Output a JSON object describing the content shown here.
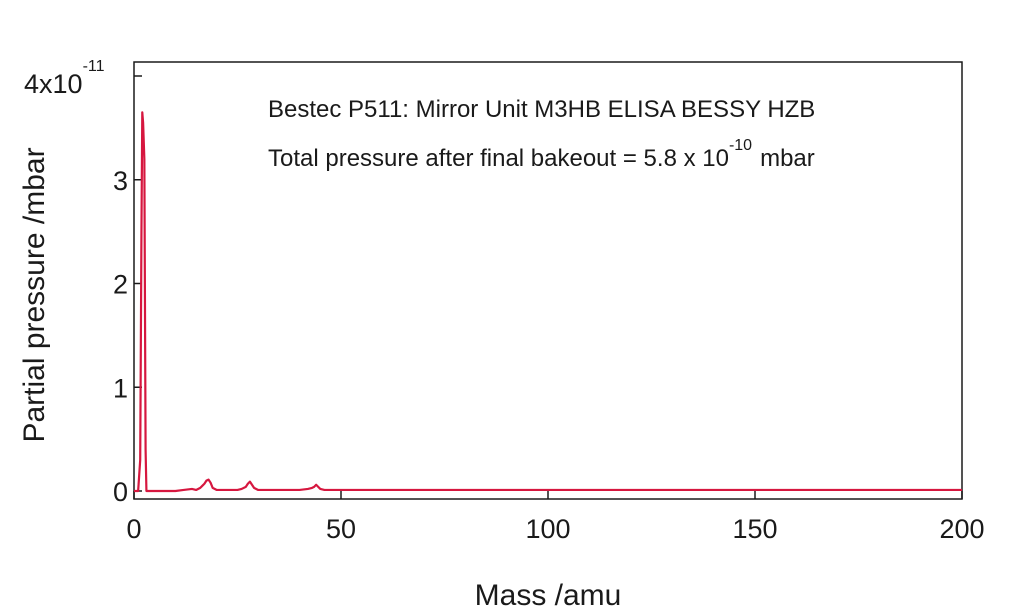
{
  "chart_data": {
    "type": "line",
    "annotations": {
      "line1": "Bestec P511: Mirror Unit M3HB ELISA BESSY HZB",
      "line2_prefix": "Total pressure after final bakeout = 5.8 x 10",
      "line2_exponent": "-10",
      "line2_suffix": "mbar"
    },
    "xlabel": "Mass /amu",
    "ylabel": "Partial pressure /mbar",
    "xlim": [
      0,
      200
    ],
    "ylim": [
      0,
      4
    ],
    "y_multiplier": {
      "base": "4x10",
      "exponent": "-11"
    },
    "x_ticks": [
      "0",
      "50",
      "100",
      "150",
      "200"
    ],
    "y_ticks": [
      "0",
      "1",
      "2",
      "3"
    ],
    "grid": false,
    "line_color": "#d6173f",
    "series": [
      {
        "x": [
          0,
          1,
          1.5,
          1.8,
          2,
          2.2,
          2.5,
          2.8,
          3,
          3.5,
          10,
          12,
          14,
          15,
          16,
          16.5,
          17,
          17.5,
          18,
          18.5,
          19,
          20,
          25,
          26,
          27,
          27.5,
          28,
          28.5,
          29,
          30,
          40,
          42,
          43,
          43.5,
          44,
          44.5,
          45,
          46,
          60,
          100,
          150,
          200
        ],
        "y": [
          0,
          0,
          0.3,
          2.5,
          3.65,
          3.55,
          3.2,
          0.4,
          0,
          0,
          0,
          0.01,
          0.02,
          0.01,
          0.03,
          0.05,
          0.07,
          0.1,
          0.11,
          0.08,
          0.03,
          0.01,
          0.01,
          0.02,
          0.04,
          0.07,
          0.09,
          0.06,
          0.03,
          0.01,
          0.01,
          0.02,
          0.03,
          0.04,
          0.06,
          0.04,
          0.02,
          0.01,
          0.01,
          0.01,
          0.01,
          0.01
        ]
      }
    ]
  }
}
